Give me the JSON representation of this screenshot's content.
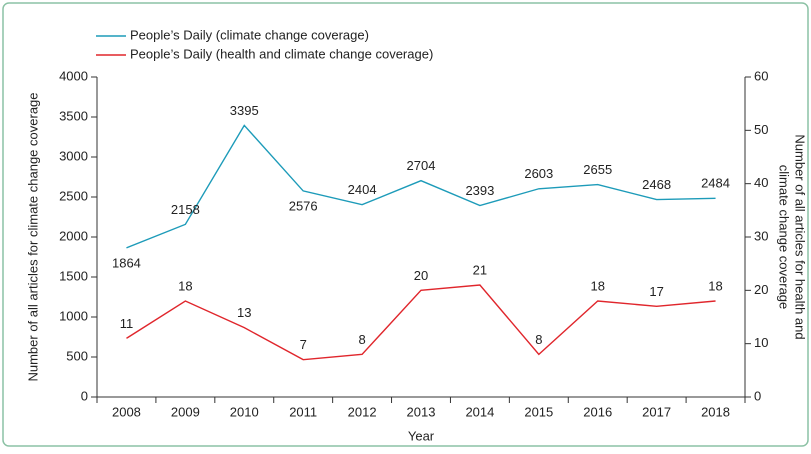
{
  "chart_data": {
    "type": "line",
    "categories": [
      "2008",
      "2009",
      "2010",
      "2011",
      "2012",
      "2013",
      "2014",
      "2015",
      "2016",
      "2017",
      "2018"
    ],
    "series": [
      {
        "name": "People’s Daily (climate change coverage)",
        "color": "#1d9bb9",
        "values": [
          1864,
          2158,
          3395,
          2576,
          2404,
          2704,
          2393,
          2603,
          2655,
          2468,
          2484
        ]
      },
      {
        "name": "People’s Daily (health and climate change coverage)",
        "color": "#e0262c",
        "axis": "y2",
        "values": [
          11,
          18,
          13,
          7,
          8,
          20,
          21,
          8,
          18,
          17,
          18
        ]
      }
    ],
    "xlabel": "Year",
    "ylabel": "Number of all articles for climate change coverage",
    "y2label": [
      "Number of all articles for health and",
      "climate change coverage"
    ],
    "ylim": [
      0,
      4000
    ],
    "yticks": [
      0,
      500,
      1000,
      1500,
      2000,
      2500,
      3000,
      3500,
      4000
    ],
    "y2lim": [
      0,
      60
    ],
    "y2ticks": [
      0,
      10,
      20,
      30,
      40,
      50,
      60
    ]
  }
}
